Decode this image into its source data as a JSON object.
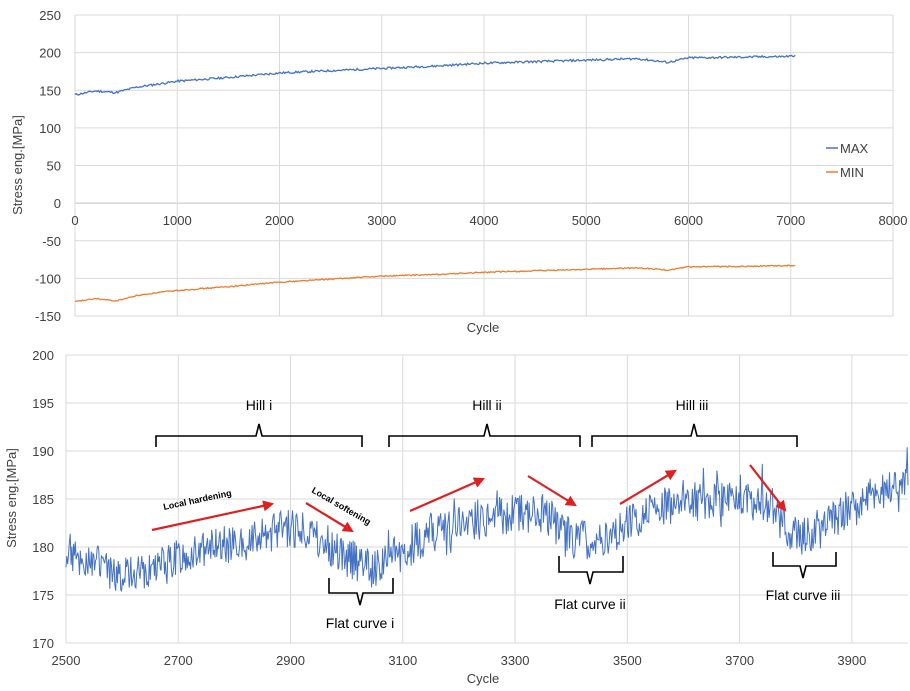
{
  "chart_data": [
    {
      "type": "line",
      "xlabel": "Cycle",
      "ylabel": "Stress eng.[MPa]",
      "xlim": [
        0,
        8000
      ],
      "ylim": [
        -150,
        250
      ],
      "xticks": [
        0,
        1000,
        2000,
        3000,
        4000,
        5000,
        6000,
        7000,
        8000
      ],
      "yticks": [
        -150,
        -100,
        -50,
        0,
        50,
        100,
        150,
        200,
        250
      ],
      "grid": true,
      "legend_position": "right",
      "series": [
        {
          "name": "MAX",
          "color": "#4472c4",
          "x": [
            0,
            200,
            400,
            600,
            800,
            1000,
            1500,
            2000,
            2500,
            3000,
            3500,
            4000,
            4500,
            5000,
            5500,
            5800,
            6000,
            6500,
            7000,
            7050
          ],
          "y": [
            144,
            149,
            147,
            154,
            158,
            162,
            167,
            173,
            176,
            179,
            182,
            186,
            188,
            190,
            192,
            187,
            193,
            194,
            195,
            197
          ]
        },
        {
          "name": "MIN",
          "color": "#ed7d31",
          "x": [
            0,
            200,
            400,
            600,
            800,
            1000,
            1500,
            2000,
            2500,
            3000,
            3500,
            4000,
            4500,
            5000,
            5500,
            5800,
            6000,
            6500,
            7000,
            7050
          ],
          "y": [
            -131,
            -127,
            -130,
            -123,
            -119,
            -116,
            -111,
            -105,
            -101,
            -97,
            -95,
            -92,
            -90,
            -88,
            -86,
            -89,
            -85,
            -84,
            -83,
            -82
          ]
        }
      ]
    },
    {
      "type": "line",
      "xlabel": "Cycle",
      "ylabel": "Stress eng.[MPa]",
      "xlim": [
        2500,
        4000
      ],
      "ylim": [
        170,
        200
      ],
      "xticks": [
        2500,
        2700,
        2900,
        3100,
        3300,
        3500,
        3700,
        3900
      ],
      "yticks": [
        170,
        175,
        180,
        185,
        190,
        195,
        200
      ],
      "grid": true,
      "series": [
        {
          "color": "#4472c4",
          "x": [
            2500,
            2550,
            2600,
            2650,
            2700,
            2750,
            2800,
            2850,
            2900,
            2950,
            3000,
            3050,
            3100,
            3150,
            3200,
            3250,
            3300,
            3350,
            3400,
            3450,
            3500,
            3550,
            3600,
            3650,
            3700,
            3750,
            3800,
            3850,
            3900,
            3950,
            4000
          ],
          "y": [
            179.5,
            178.5,
            177,
            177.5,
            178.5,
            179.5,
            180.5,
            181,
            182,
            181,
            179,
            177.5,
            179.5,
            181.5,
            182.5,
            183,
            183.5,
            183.5,
            181,
            180.5,
            182.5,
            184,
            184.5,
            185,
            185.5,
            184,
            181,
            182,
            184.5,
            186,
            187
          ]
        }
      ],
      "annotations": {
        "hills": [
          "Hill i",
          "Hill ii",
          "Hill iii"
        ],
        "flats": [
          "Flat curve i",
          "Flat curve ii",
          "Flat curve iii"
        ],
        "local_hardening": "Local hardening",
        "local_softening": "Local softening"
      }
    }
  ]
}
